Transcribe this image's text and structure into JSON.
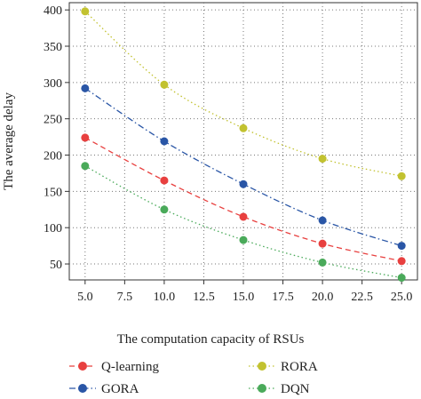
{
  "chart_data": {
    "type": "line",
    "xlabel": "The computation capacity of RSUs",
    "ylabel": "The average delay",
    "xlim": [
      4.0,
      26.0
    ],
    "ylim": [
      28,
      410
    ],
    "xticks": [
      5.0,
      7.5,
      10.0,
      12.5,
      15.0,
      17.5,
      20.0,
      22.5,
      25.0
    ],
    "xtick_labels": [
      "5.0",
      "7.5",
      "10.0",
      "12.5",
      "15.0",
      "17.5",
      "20.0",
      "22.5",
      "25.0"
    ],
    "yticks": [
      50,
      100,
      150,
      200,
      250,
      300,
      350,
      400
    ],
    "ytick_labels": [
      "50",
      "100",
      "150",
      "200",
      "250",
      "300",
      "350",
      "400"
    ],
    "grid": true,
    "legend_position": "bottom",
    "x": [
      5,
      10,
      15,
      20,
      25
    ],
    "series": [
      {
        "name": "Q-learning",
        "values": [
          224,
          165,
          115,
          78,
          54
        ],
        "color": "#e8403f",
        "dash": "dashed"
      },
      {
        "name": "RORA",
        "values": [
          398,
          297,
          237,
          195,
          171
        ],
        "color": "#c2c230",
        "dash": "dotted"
      },
      {
        "name": "GORA",
        "values": [
          292,
          219,
          160,
          110,
          75
        ],
        "color": "#2a56a6",
        "dash": "dashdot"
      },
      {
        "name": "DQN",
        "values": [
          185,
          125,
          83,
          52,
          31
        ],
        "color": "#4aaa5a",
        "dash": "dotted"
      }
    ]
  }
}
